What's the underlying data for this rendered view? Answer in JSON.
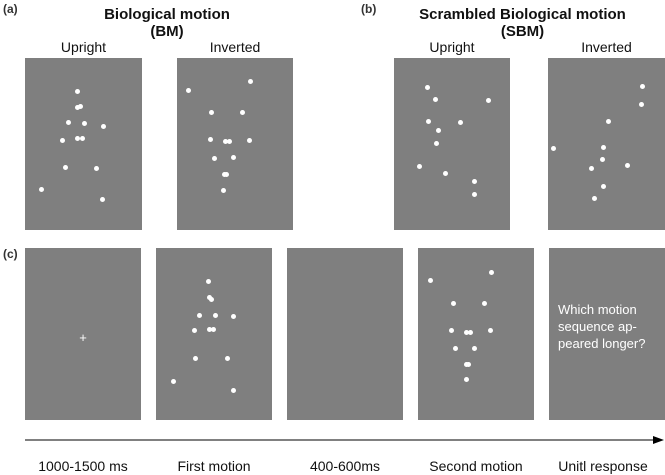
{
  "section_a": {
    "label": "(a)",
    "title_line1": "Biological motion",
    "title_line2": "(BM)",
    "upright_label": "Upright",
    "inverted_label": "Inverted"
  },
  "section_b": {
    "label": "(b)",
    "title_line1": "Scrambled Biological motion",
    "title_line2": "(SBM)",
    "upright_label": "Upright",
    "inverted_label": "Inverted"
  },
  "section_c": {
    "label": "(c)",
    "fixation_symbol": "+",
    "question_lines": [
      "Which motion",
      "sequence ap-",
      "peared longer?"
    ],
    "timeline_labels": [
      "1000-1500 ms",
      "First motion",
      "400-600ms",
      "Second motion",
      "Unitl response"
    ]
  },
  "colors": {
    "panel_gray": "#7f7f7f",
    "dot_white": "#ffffff",
    "arrow": "#000000"
  }
}
